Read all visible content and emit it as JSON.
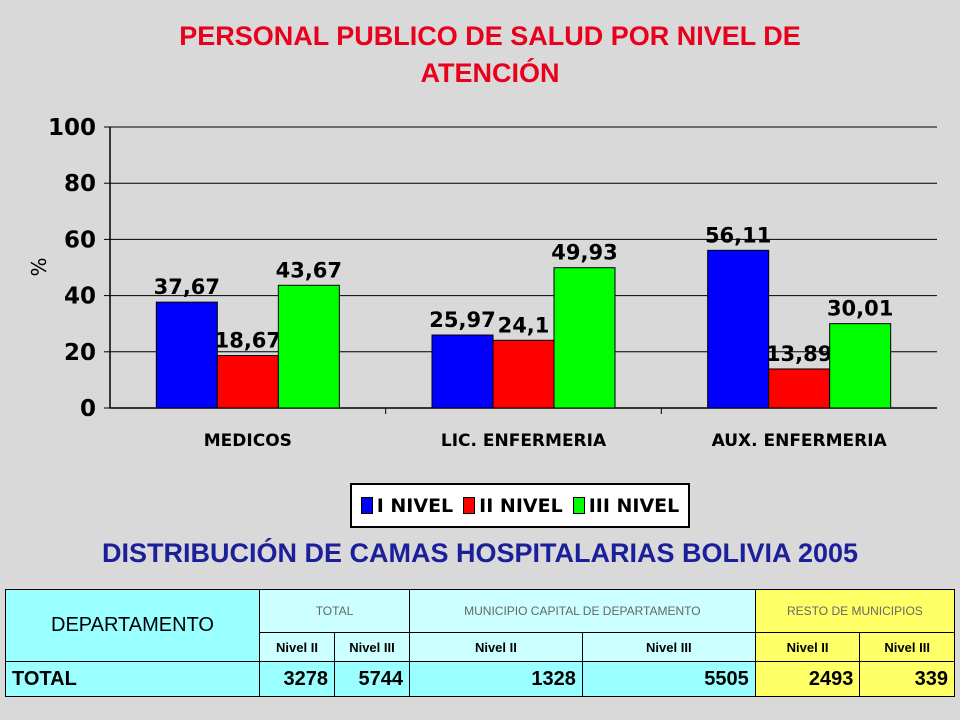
{
  "chart_data": {
    "type": "bar",
    "title_line1": "PERSONAL PUBLICO DE SALUD POR NIVEL DE",
    "title_line2": "ATENCIÓN",
    "ylabel": "%",
    "ylim": [
      0,
      100
    ],
    "yticks": [
      "0",
      "20",
      "40",
      "60",
      "80",
      "100"
    ],
    "categories": [
      "MEDICOS",
      "LIC. ENFERMERIA",
      "AUX. ENFERMERIA"
    ],
    "series": [
      {
        "name": "I NIVEL",
        "color": "#0000ff",
        "values": [
          37.67,
          25.97,
          56.11
        ],
        "labels": [
          "37,67",
          "25,97",
          "56,11"
        ]
      },
      {
        "name": "II NIVEL",
        "color": "#ff0000",
        "values": [
          18.67,
          24.1,
          13.89
        ],
        "labels": [
          "18,67",
          "24,1",
          "13,89"
        ]
      },
      {
        "name": "III NIVEL",
        "color": "#00ff00",
        "values": [
          43.67,
          49.93,
          30.01
        ],
        "labels": [
          "43,67",
          "49,93",
          "30,01"
        ]
      }
    ],
    "legend": "bottom"
  },
  "table": {
    "title": "DISTRIBUCIÓN DE CAMAS HOSPITALARIAS BOLIVIA 2005",
    "col_department": "DEPARTAMENTO",
    "group_total": "TOTAL",
    "group_capital": "MUNICIPIO CAPITAL DE DEPARTAMENTO",
    "group_rest": "RESTO DE MUNICIPIOS",
    "level2": "Nivel II",
    "level3": "Nivel III",
    "row_label": "TOTAL",
    "values": [
      "3278",
      "5744",
      "1328",
      "5505",
      "2493",
      "339"
    ]
  }
}
